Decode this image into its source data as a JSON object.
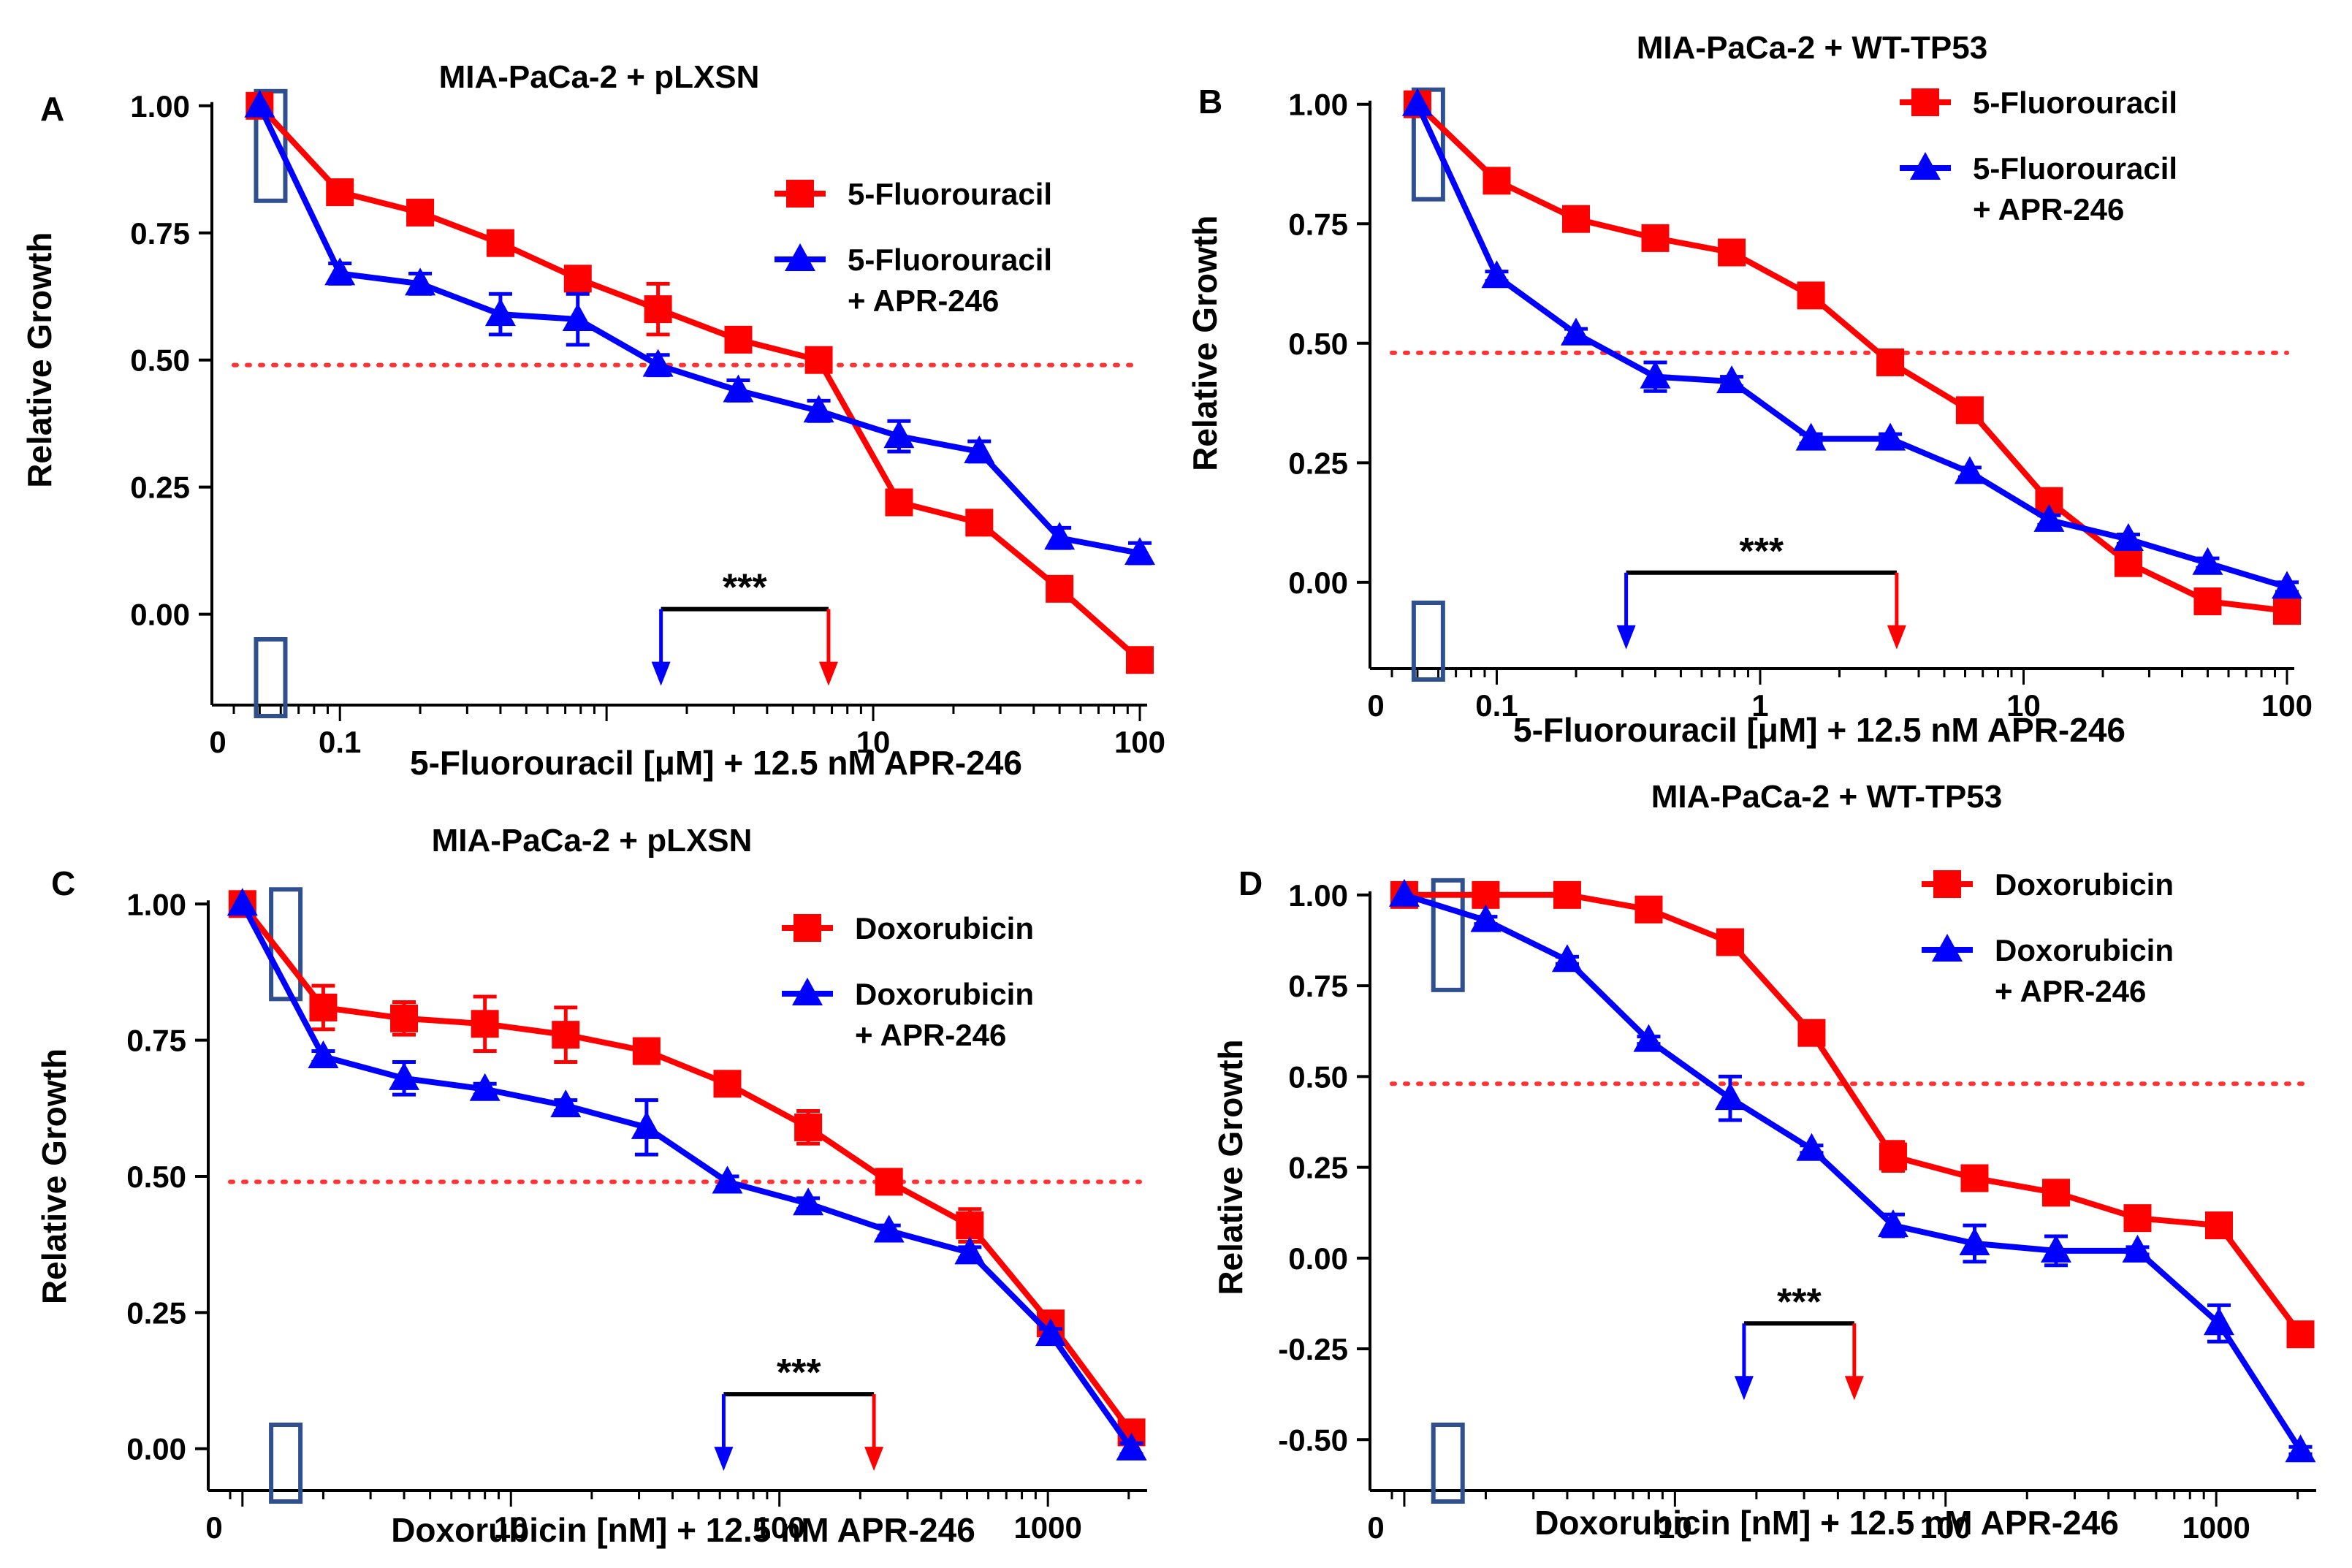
{
  "colors": {
    "red": "#ff0000",
    "blue": "#0000ff",
    "axis": "#000000",
    "box": "#2f4f8f",
    "dotted": "#ff3333"
  },
  "chart_data": [
    {
      "type": "line",
      "panel_label": "A",
      "title": "MIA-PaCa-2 + pLXSN",
      "xlabel": "5-Fluorouracil [μM] + 12.5 nM APR-246",
      "ylabel": "Relative Growth",
      "xscale": "log",
      "xlim": [
        0.04,
        100
      ],
      "ylim": [
        -0.15,
        1.05
      ],
      "zero_tick_label": "0",
      "xticks": [
        0.1,
        1,
        10,
        100
      ],
      "xtick_labels": [
        "0.1",
        "",
        "10",
        "100"
      ],
      "yticks": [
        1.0,
        0.75,
        0.5,
        0.25,
        0.0
      ],
      "ytick_labels": [
        "1.00",
        "0.75",
        "0.50",
        "0.25",
        "0.00"
      ],
      "threshold": 0.49,
      "series": [
        {
          "name": "5-Fluorouracil",
          "color": "red",
          "marker": "square",
          "x": [
            0.05,
            0.1,
            0.2,
            0.4,
            0.78,
            1.56,
            3.12,
            6.25,
            12.5,
            25,
            50,
            100
          ],
          "y": [
            1.0,
            0.83,
            0.79,
            0.73,
            0.66,
            0.6,
            0.54,
            0.5,
            0.22,
            0.18,
            0.05,
            -0.09
          ],
          "err": [
            0,
            0.02,
            0.02,
            0.02,
            0.02,
            0.05,
            0.02,
            0.02,
            0.02,
            0.02,
            0.01,
            0.01
          ]
        },
        {
          "name": "5-Fluorouracil\n+ APR-246",
          "color": "blue",
          "marker": "triangle",
          "x": [
            0.05,
            0.1,
            0.2,
            0.4,
            0.78,
            1.56,
            3.12,
            6.25,
            12.5,
            25,
            50,
            100
          ],
          "y": [
            1.0,
            0.67,
            0.65,
            0.59,
            0.58,
            0.49,
            0.44,
            0.4,
            0.35,
            0.32,
            0.15,
            0.12
          ],
          "err": [
            0,
            0.02,
            0.02,
            0.04,
            0.05,
            0.02,
            0.02,
            0.02,
            0.03,
            0.02,
            0.02,
            0.02
          ]
        }
      ],
      "legend_placement": "top-right",
      "significance": {
        "label": "***",
        "x_blue": 1.6,
        "x_red": 6.8,
        "y": 0.01
      },
      "markers_x": [
        0.055
      ],
      "yellow_note": ""
    },
    {
      "type": "line",
      "panel_label": "B",
      "title": "MIA-PaCa-2 + WT-TP53",
      "xlabel": "5-Fluorouracil [μM] + 12.5 nM APR-246",
      "ylabel": "Relative Growth",
      "xscale": "log",
      "xlim": [
        0.04,
        100
      ],
      "ylim": [
        -0.15,
        1.05
      ],
      "zero_tick_label": "0",
      "xticks": [
        0.1,
        1,
        10,
        100
      ],
      "xtick_labels": [
        "0.1",
        "1",
        "10",
        "100"
      ],
      "yticks": [
        1.0,
        0.75,
        0.5,
        0.25,
        0.0
      ],
      "ytick_labels": [
        "1.00",
        "0.75",
        "0.50",
        "0.25",
        "0.00"
      ],
      "threshold": 0.48,
      "series": [
        {
          "name": "5-Fluorouracil",
          "color": "red",
          "marker": "square",
          "x": [
            0.05,
            0.1,
            0.2,
            0.4,
            0.78,
            1.56,
            3.12,
            6.25,
            12.5,
            25,
            50,
            100
          ],
          "y": [
            1.0,
            0.84,
            0.76,
            0.72,
            0.69,
            0.6,
            0.46,
            0.36,
            0.17,
            0.04,
            -0.04,
            -0.06
          ],
          "err": [
            0,
            0.01,
            0.01,
            0.01,
            0.01,
            0.01,
            0.02,
            0.01,
            0.01,
            0.01,
            0.01,
            0.01
          ]
        },
        {
          "name": "5-Fluorouracil\n+ APR-246",
          "color": "blue",
          "marker": "triangle",
          "x": [
            0.05,
            0.1,
            0.2,
            0.4,
            0.78,
            1.56,
            3.12,
            6.25,
            12.5,
            25,
            50,
            100
          ],
          "y": [
            1.0,
            0.64,
            0.52,
            0.43,
            0.42,
            0.3,
            0.3,
            0.23,
            0.13,
            0.09,
            0.04,
            -0.01
          ],
          "err": [
            0,
            0.01,
            0.01,
            0.03,
            0.01,
            0.01,
            0.01,
            0.01,
            0.01,
            0.01,
            0.01,
            0.01
          ]
        }
      ],
      "legend_placement": "top-right",
      "significance": {
        "label": "***",
        "x_blue": 0.31,
        "x_red": 3.3,
        "y": 0.02
      },
      "markers_x": [
        0.055
      ]
    },
    {
      "type": "line",
      "panel_label": "C",
      "title": "MIA-PaCa-2 + pLXSN",
      "xlabel": "Doxorubicin [nM] + 12.5 nM APR-246",
      "ylabel": "Relative Growth",
      "xscale": "log",
      "xlim": [
        0.9,
        2200
      ],
      "ylim": [
        -0.05,
        1.05
      ],
      "zero_tick_label": "0",
      "xticks": [
        10,
        100,
        1000
      ],
      "xtick_labels": [
        "10",
        "100",
        "1000"
      ],
      "yticks": [
        1.0,
        0.75,
        0.5,
        0.25,
        0.0
      ],
      "ytick_labels": [
        "1.00",
        "0.75",
        "0.50",
        "0.25",
        "0.00"
      ],
      "threshold": 0.49,
      "series": [
        {
          "name": "Doxorubicin",
          "color": "red",
          "marker": "square",
          "x": [
            1,
            2,
            4,
            8,
            16,
            32,
            64,
            128,
            256,
            512,
            1024,
            2048
          ],
          "y": [
            1.0,
            0.81,
            0.79,
            0.78,
            0.76,
            0.73,
            0.67,
            0.59,
            0.49,
            0.41,
            0.23,
            0.03
          ],
          "err": [
            0,
            0.04,
            0.03,
            0.05,
            0.05,
            0.01,
            0.01,
            0.03,
            0.01,
            0.03,
            0.01,
            0.01
          ]
        },
        {
          "name": "Doxorubicin\n+ APR-246",
          "color": "blue",
          "marker": "triangle",
          "x": [
            1,
            2,
            4,
            8,
            16,
            32,
            64,
            128,
            256,
            512,
            1024,
            2048
          ],
          "y": [
            1.0,
            0.72,
            0.68,
            0.66,
            0.63,
            0.59,
            0.49,
            0.45,
            0.4,
            0.36,
            0.21,
            0.0
          ],
          "err": [
            0,
            0.01,
            0.03,
            0.01,
            0.01,
            0.05,
            0.01,
            0.01,
            0.01,
            0.01,
            0.01,
            0.01
          ]
        }
      ],
      "legend_placement": "top-right",
      "significance": {
        "label": "***",
        "x_blue": 62,
        "x_red": 225,
        "y": 0.1
      },
      "markers_x": [
        1.45
      ]
    },
    {
      "type": "line",
      "panel_label": "D",
      "title": "MIA-PaCa-2 + WT-TP53",
      "xlabel": "Doxorubicin [nM] + 12.5 nM APR-246",
      "ylabel": "Relative Growth",
      "xscale": "log",
      "xlim": [
        0.9,
        2200
      ],
      "ylim": [
        -0.6,
        1.05
      ],
      "zero_tick_label": "0",
      "xticks": [
        10,
        100,
        1000
      ],
      "xtick_labels": [
        "10",
        "100",
        "1000"
      ],
      "yticks": [
        1.0,
        0.75,
        0.5,
        0.25,
        0.0,
        -0.25,
        -0.5
      ],
      "ytick_labels": [
        "1.00",
        "0.75",
        "0.50",
        "0.25",
        "0.00",
        "-0.25",
        "-0.50"
      ],
      "threshold": 0.48,
      "series": [
        {
          "name": "Doxorubicin",
          "color": "red",
          "marker": "square",
          "x": [
            1,
            2,
            4,
            8,
            16,
            32,
            64,
            128,
            256,
            512,
            1024,
            2048
          ],
          "y": [
            1.0,
            1.0,
            1.0,
            0.96,
            0.87,
            0.62,
            0.28,
            0.22,
            0.18,
            0.11,
            0.09,
            -0.21
          ],
          "err": [
            0,
            0.01,
            0.01,
            0.03,
            0.01,
            0.01,
            0.04,
            0.01,
            0.01,
            0.01,
            0.03,
            0.01
          ]
        },
        {
          "name": "Doxorubicin\n+ APR-246",
          "color": "blue",
          "marker": "triangle",
          "x": [
            1,
            2,
            4,
            8,
            16,
            32,
            64,
            128,
            256,
            512,
            1024,
            2048
          ],
          "y": [
            1.0,
            0.93,
            0.82,
            0.6,
            0.44,
            0.3,
            0.09,
            0.04,
            0.02,
            0.02,
            -0.18,
            -0.53
          ],
          "err": [
            0,
            0.01,
            0.01,
            0.01,
            0.06,
            0.01,
            0.03,
            0.05,
            0.04,
            0.01,
            0.05,
            0.01
          ]
        }
      ],
      "legend_placement": "top-right",
      "significance": {
        "label": "***",
        "x_blue": 18,
        "x_red": 46,
        "y": -0.18
      },
      "markers_x": [
        1.45
      ]
    }
  ]
}
